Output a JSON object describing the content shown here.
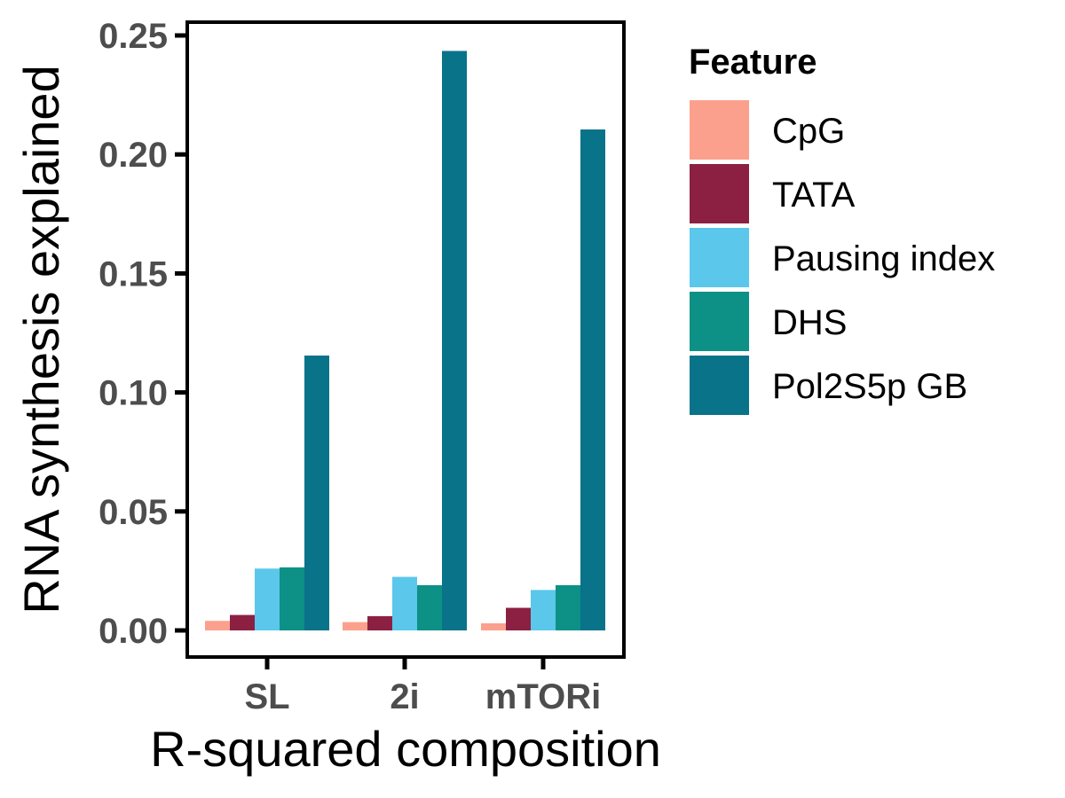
{
  "chart_data": {
    "type": "bar",
    "title": "",
    "xlabel": "R-squared composition",
    "ylabel": "RNA synthesis explained",
    "categories": [
      "SL",
      "2i",
      "mTORi"
    ],
    "ylim": [
      -0.011,
      0.255
    ],
    "yticks": [
      "0.00",
      "0.05",
      "0.10",
      "0.15",
      "0.20",
      "0.25"
    ],
    "grid": false,
    "legend": {
      "title": "Feature",
      "placement": "right"
    },
    "series": [
      {
        "name": "CpG",
        "color": "#FBA08C",
        "values": [
          0.004,
          0.0035,
          0.003
        ]
      },
      {
        "name": "TATA",
        "color": "#8C2043",
        "values": [
          0.0065,
          0.006,
          0.0095
        ]
      },
      {
        "name": "Pausing index",
        "color": "#5BC7EB",
        "values": [
          0.026,
          0.0225,
          0.017
        ]
      },
      {
        "name": "DHS",
        "color": "#0D9186",
        "values": [
          0.0265,
          0.019,
          0.019
        ]
      },
      {
        "name": "Pol2S5p GB",
        "color": "#087389",
        "values": [
          0.1155,
          0.2435,
          0.2105
        ]
      }
    ]
  }
}
